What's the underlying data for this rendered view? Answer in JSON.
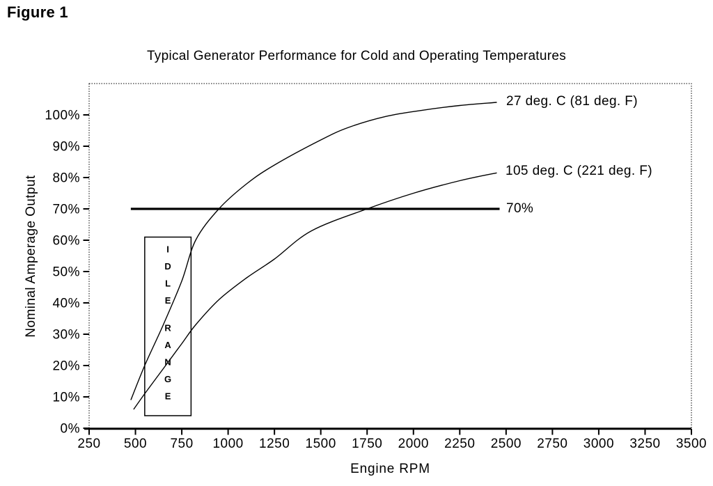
{
  "figure_label": "Figure 1",
  "chart_data": {
    "type": "line",
    "title": "Typical Generator Performance for Cold and Operating Temperatures",
    "xlabel": "Engine RPM",
    "ylabel": "Nominal Amperage Output",
    "xlim": [
      250,
      3500
    ],
    "ylim": [
      0,
      110
    ],
    "grid": false,
    "legend_position": "labels-at-right-end-of-curves",
    "x_ticks": [
      250,
      500,
      750,
      1000,
      1250,
      1500,
      1750,
      2000,
      2250,
      2500,
      2750,
      3000,
      3250,
      3500
    ],
    "x_tick_labels": [
      "250",
      "500",
      "750",
      "1000",
      "1250",
      "1500",
      "1750",
      "2000",
      "2250",
      "2500",
      "2750",
      "3000",
      "3250",
      "3500"
    ],
    "y_ticks": [
      0,
      10,
      20,
      30,
      40,
      50,
      60,
      70,
      80,
      90,
      100
    ],
    "y_tick_labels": [
      "0%",
      "10%",
      "20%",
      "30%",
      "40%",
      "50%",
      "60%",
      "70%",
      "80%",
      "90%",
      "100%"
    ],
    "series": [
      {
        "id": "cold",
        "label": "27 deg. C (81 deg. F)",
        "rpm": [
          475,
          550,
          650,
          750,
          825,
          950,
          1100,
          1250,
          1500,
          1650,
          1850,
          2050,
          2250,
          2450
        ],
        "pct": [
          9,
          20,
          33,
          47,
          60,
          70,
          78,
          84,
          92,
          96,
          99.5,
          101.5,
          103,
          104
        ]
      },
      {
        "id": "hot",
        "label": "105 deg. C (221 deg. F)",
        "rpm": [
          490,
          550,
          650,
          750,
          825,
          950,
          1100,
          1250,
          1450,
          1750,
          2000,
          2250,
          2450
        ],
        "pct": [
          6,
          11,
          19,
          27,
          33,
          41,
          48,
          54,
          63,
          70,
          75,
          79,
          81.5
        ]
      }
    ],
    "reference_line": {
      "label": "70%",
      "pct": 70,
      "rpm_start": 475,
      "rpm_end": 2465
    },
    "idle_range_box": {
      "label": "IDLE RANGE",
      "label_words": [
        "IDLE",
        "RANGE"
      ],
      "rpm_start": 550,
      "rpm_end": 800,
      "pct_bottom": 4,
      "pct_top": 61
    }
  }
}
